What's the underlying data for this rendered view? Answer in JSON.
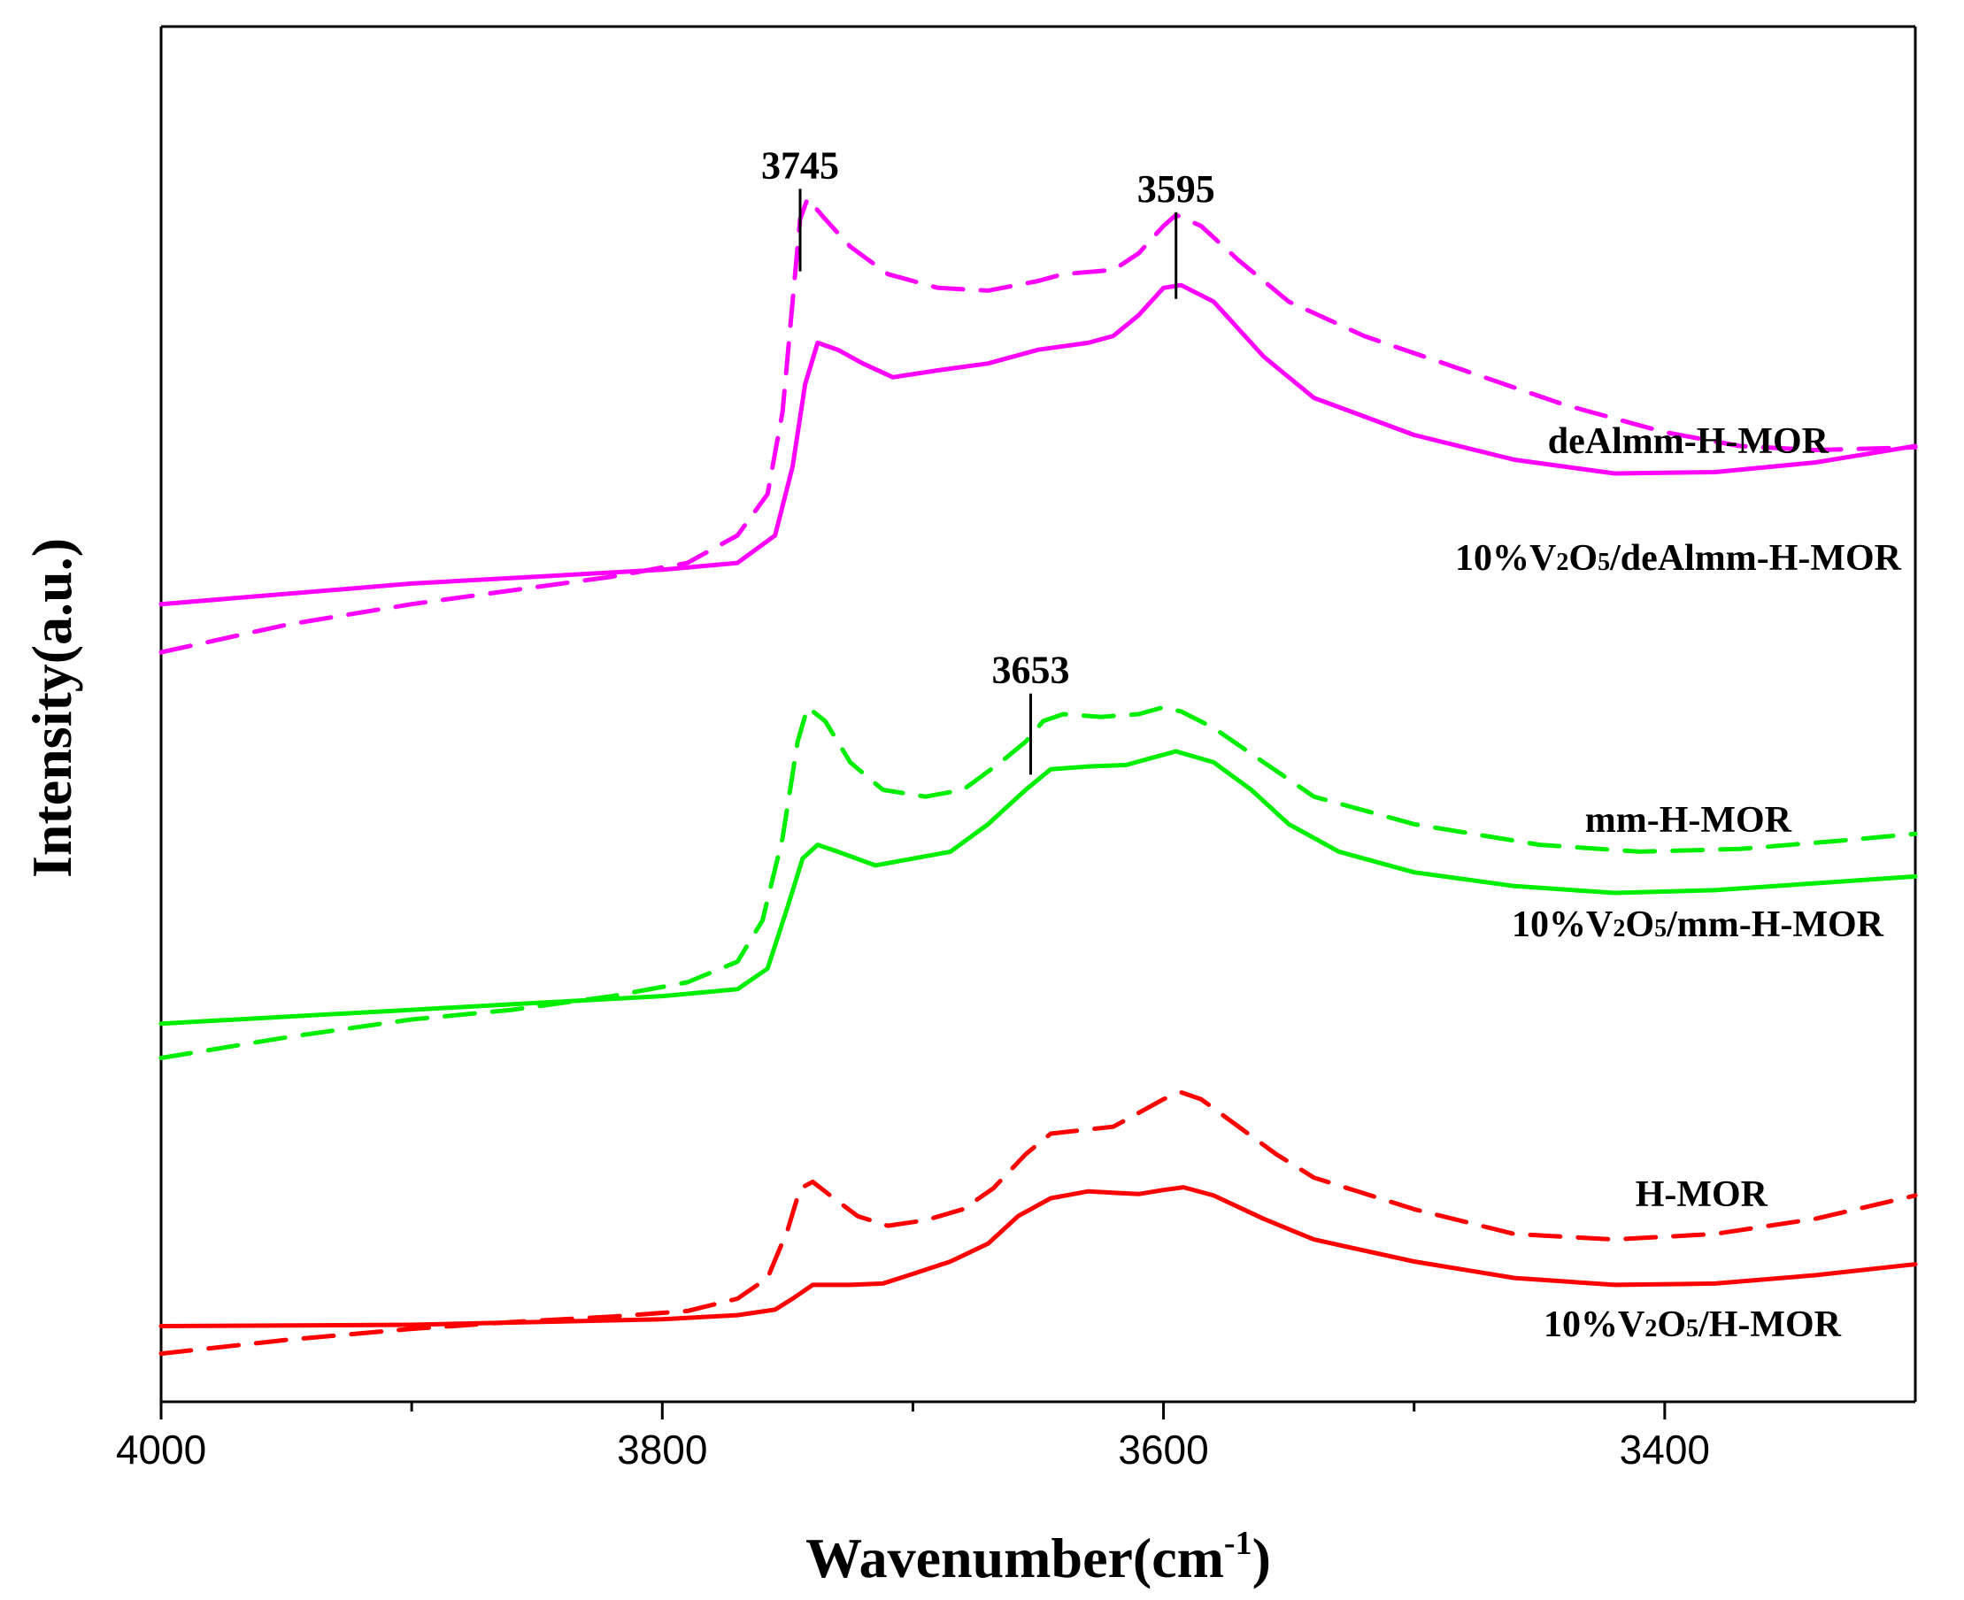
{
  "chart_data": {
    "type": "line",
    "title": "",
    "xlabel": "Wavenumber(cm",
    "xlabel_sup": "-1",
    "xlabel_close": ")",
    "ylabel": "Intensity(a.u.)",
    "xlim": [
      4000,
      3300
    ],
    "ylim": [
      0,
      100
    ],
    "x_direction": "reversed",
    "x_ticks": [
      4000,
      3800,
      3600,
      3400
    ],
    "x_tick_labels": [
      "4000",
      "3800",
      "3600",
      "3400"
    ],
    "x_minor_ticks": [
      3900,
      3700,
      3500
    ],
    "y_ticks_shown": false,
    "grid": false,
    "colors": {
      "deAlmm": "#ff00ff",
      "mm": "#00ee00",
      "H": "#ff0000",
      "axis": "#000000"
    },
    "series": [
      {
        "name": "deAlmm-H-MOR",
        "color": "#ff00ff",
        "dash": "solid",
        "points": [
          [
            4000,
            58
          ],
          [
            3900,
            59.5
          ],
          [
            3850,
            60
          ],
          [
            3800,
            60.5
          ],
          [
            3770,
            61
          ],
          [
            3755,
            63
          ],
          [
            3748,
            68
          ],
          [
            3743,
            74
          ],
          [
            3738,
            77
          ],
          [
            3730,
            76.5
          ],
          [
            3720,
            75.5
          ],
          [
            3708,
            74.5
          ],
          [
            3690,
            75
          ],
          [
            3670,
            75.5
          ],
          [
            3650,
            76.5
          ],
          [
            3630,
            77
          ],
          [
            3620,
            77.5
          ],
          [
            3610,
            79
          ],
          [
            3600,
            81
          ],
          [
            3593,
            81.2
          ],
          [
            3580,
            80
          ],
          [
            3560,
            76
          ],
          [
            3540,
            73
          ],
          [
            3500,
            70.3
          ],
          [
            3460,
            68.5
          ],
          [
            3420,
            67.5
          ],
          [
            3380,
            67.6
          ],
          [
            3340,
            68.3
          ],
          [
            3300,
            69.5
          ]
        ]
      },
      {
        "name": "10%V2O5/deAlmm-H-MOR",
        "color": "#ff00ff",
        "dash": "dashed",
        "points": [
          [
            4000,
            54.5
          ],
          [
            3950,
            56.5
          ],
          [
            3900,
            58
          ],
          [
            3860,
            59
          ],
          [
            3820,
            60
          ],
          [
            3790,
            61
          ],
          [
            3770,
            63
          ],
          [
            3758,
            66
          ],
          [
            3752,
            72
          ],
          [
            3748,
            80
          ],
          [
            3745,
            86
          ],
          [
            3742,
            87.5
          ],
          [
            3735,
            86
          ],
          [
            3725,
            84
          ],
          [
            3710,
            82
          ],
          [
            3690,
            81
          ],
          [
            3670,
            80.8
          ],
          [
            3650,
            81.5
          ],
          [
            3640,
            82
          ],
          [
            3620,
            82.3
          ],
          [
            3610,
            83.5
          ],
          [
            3600,
            85.5
          ],
          [
            3595,
            86.3
          ],
          [
            3585,
            85.5
          ],
          [
            3570,
            83
          ],
          [
            3550,
            80
          ],
          [
            3520,
            77.5
          ],
          [
            3480,
            75
          ],
          [
            3440,
            72.5
          ],
          [
            3400,
            70.5
          ],
          [
            3370,
            69.5
          ],
          [
            3340,
            69.2
          ],
          [
            3300,
            69.4
          ]
        ]
      },
      {
        "name": "mm-H-MOR",
        "color": "#00ee00",
        "dash": "solid",
        "points": [
          [
            4000,
            27.5
          ],
          [
            3900,
            28.5
          ],
          [
            3850,
            29
          ],
          [
            3800,
            29.5
          ],
          [
            3770,
            30
          ],
          [
            3758,
            31.5
          ],
          [
            3750,
            36
          ],
          [
            3744,
            39.5
          ],
          [
            3738,
            40.5
          ],
          [
            3730,
            40
          ],
          [
            3715,
            39
          ],
          [
            3700,
            39.5
          ],
          [
            3685,
            40
          ],
          [
            3670,
            42
          ],
          [
            3655,
            44.5
          ],
          [
            3645,
            46
          ],
          [
            3630,
            46.2
          ],
          [
            3615,
            46.3
          ],
          [
            3605,
            46.8
          ],
          [
            3595,
            47.3
          ],
          [
            3580,
            46.5
          ],
          [
            3565,
            44.5
          ],
          [
            3550,
            42
          ],
          [
            3530,
            40
          ],
          [
            3500,
            38.5
          ],
          [
            3460,
            37.5
          ],
          [
            3420,
            37
          ],
          [
            3380,
            37.2
          ],
          [
            3340,
            37.7
          ],
          [
            3300,
            38.2
          ]
        ]
      },
      {
        "name": "10%V2O5/mm-H-MOR",
        "color": "#00ee00",
        "dash": "dashed",
        "points": [
          [
            4000,
            25
          ],
          [
            3950,
            26.5
          ],
          [
            3900,
            27.8
          ],
          [
            3860,
            28.5
          ],
          [
            3820,
            29.5
          ],
          [
            3790,
            30.5
          ],
          [
            3770,
            32
          ],
          [
            3760,
            35
          ],
          [
            3752,
            41
          ],
          [
            3746,
            48
          ],
          [
            3742,
            50.5
          ],
          [
            3735,
            49.5
          ],
          [
            3725,
            46.5
          ],
          [
            3712,
            44.5
          ],
          [
            3695,
            44
          ],
          [
            3680,
            44.5
          ],
          [
            3665,
            46.5
          ],
          [
            3655,
            48
          ],
          [
            3648,
            49.5
          ],
          [
            3640,
            50
          ],
          [
            3625,
            49.8
          ],
          [
            3610,
            50
          ],
          [
            3600,
            50.5
          ],
          [
            3593,
            50.2
          ],
          [
            3580,
            49
          ],
          [
            3560,
            46.5
          ],
          [
            3540,
            44
          ],
          [
            3500,
            42
          ],
          [
            3450,
            40.5
          ],
          [
            3410,
            40
          ],
          [
            3370,
            40.2
          ],
          [
            3330,
            40.8
          ],
          [
            3300,
            41.3
          ]
        ]
      },
      {
        "name": "H-MOR",
        "color": "#ff0000",
        "dash": "solid",
        "points": [
          [
            4000,
            5.5
          ],
          [
            3900,
            5.6
          ],
          [
            3850,
            5.8
          ],
          [
            3800,
            6
          ],
          [
            3770,
            6.3
          ],
          [
            3755,
            6.7
          ],
          [
            3748,
            7.5
          ],
          [
            3740,
            8.5
          ],
          [
            3725,
            8.5
          ],
          [
            3712,
            8.6
          ],
          [
            3700,
            9.3
          ],
          [
            3685,
            10.2
          ],
          [
            3670,
            11.5
          ],
          [
            3658,
            13.5
          ],
          [
            3645,
            14.8
          ],
          [
            3630,
            15.3
          ],
          [
            3610,
            15.1
          ],
          [
            3600,
            15.4
          ],
          [
            3592,
            15.6
          ],
          [
            3580,
            15
          ],
          [
            3560,
            13.3
          ],
          [
            3540,
            11.8
          ],
          [
            3500,
            10.2
          ],
          [
            3460,
            9
          ],
          [
            3420,
            8.5
          ],
          [
            3380,
            8.6
          ],
          [
            3340,
            9.2
          ],
          [
            3300,
            10
          ]
        ]
      },
      {
        "name": "10%V2O5/H-MOR",
        "color": "#ff0000",
        "dash": "dashed",
        "points": [
          [
            4000,
            3.5
          ],
          [
            3950,
            4.5
          ],
          [
            3900,
            5.3
          ],
          [
            3860,
            5.8
          ],
          [
            3820,
            6.2
          ],
          [
            3790,
            6.6
          ],
          [
            3770,
            7.5
          ],
          [
            3758,
            9
          ],
          [
            3750,
            12.5
          ],
          [
            3745,
            15.5
          ],
          [
            3740,
            16
          ],
          [
            3733,
            15
          ],
          [
            3722,
            13.5
          ],
          [
            3710,
            12.8
          ],
          [
            3695,
            13.2
          ],
          [
            3680,
            14
          ],
          [
            3668,
            15.5
          ],
          [
            3655,
            18
          ],
          [
            3645,
            19.5
          ],
          [
            3630,
            19.8
          ],
          [
            3620,
            20
          ],
          [
            3610,
            21
          ],
          [
            3600,
            22
          ],
          [
            3593,
            22.5
          ],
          [
            3585,
            22
          ],
          [
            3570,
            20
          ],
          [
            3555,
            18
          ],
          [
            3540,
            16.3
          ],
          [
            3500,
            14
          ],
          [
            3460,
            12.2
          ],
          [
            3420,
            11.8
          ],
          [
            3380,
            12.2
          ],
          [
            3340,
            13.3
          ],
          [
            3300,
            15
          ]
        ]
      }
    ],
    "legend": [
      {
        "series": "deAlmm-H-MOR",
        "label": "deAlmm-H-MOR"
      },
      {
        "series": "10%V2O5/deAlmm-H-MOR",
        "label_parts": [
          "10%V",
          "2",
          "O",
          "5",
          "/deAlmm-H-MOR"
        ]
      },
      {
        "series": "mm-H-MOR",
        "label": "mm-H-MOR"
      },
      {
        "series": "10%V2O5/mm-H-MOR",
        "label_parts": [
          "10%V",
          "2",
          "O",
          "5",
          "/mm-H-MOR"
        ]
      },
      {
        "series": "H-MOR",
        "label": "H-MOR"
      },
      {
        "series": "10%V2O5/H-MOR",
        "label_parts": [
          "10%V",
          "2",
          "O",
          "5",
          "/H-MOR"
        ]
      }
    ],
    "annotations": [
      {
        "label": "3745",
        "x": 3745,
        "y_from": 82.2,
        "y_to": 88.2
      },
      {
        "label": "3595",
        "x": 3595,
        "y_from": 80.2,
        "y_to": 86.5
      },
      {
        "label": "3653",
        "x": 3653,
        "y_from": 45.6,
        "y_to": 51.5
      }
    ]
  }
}
